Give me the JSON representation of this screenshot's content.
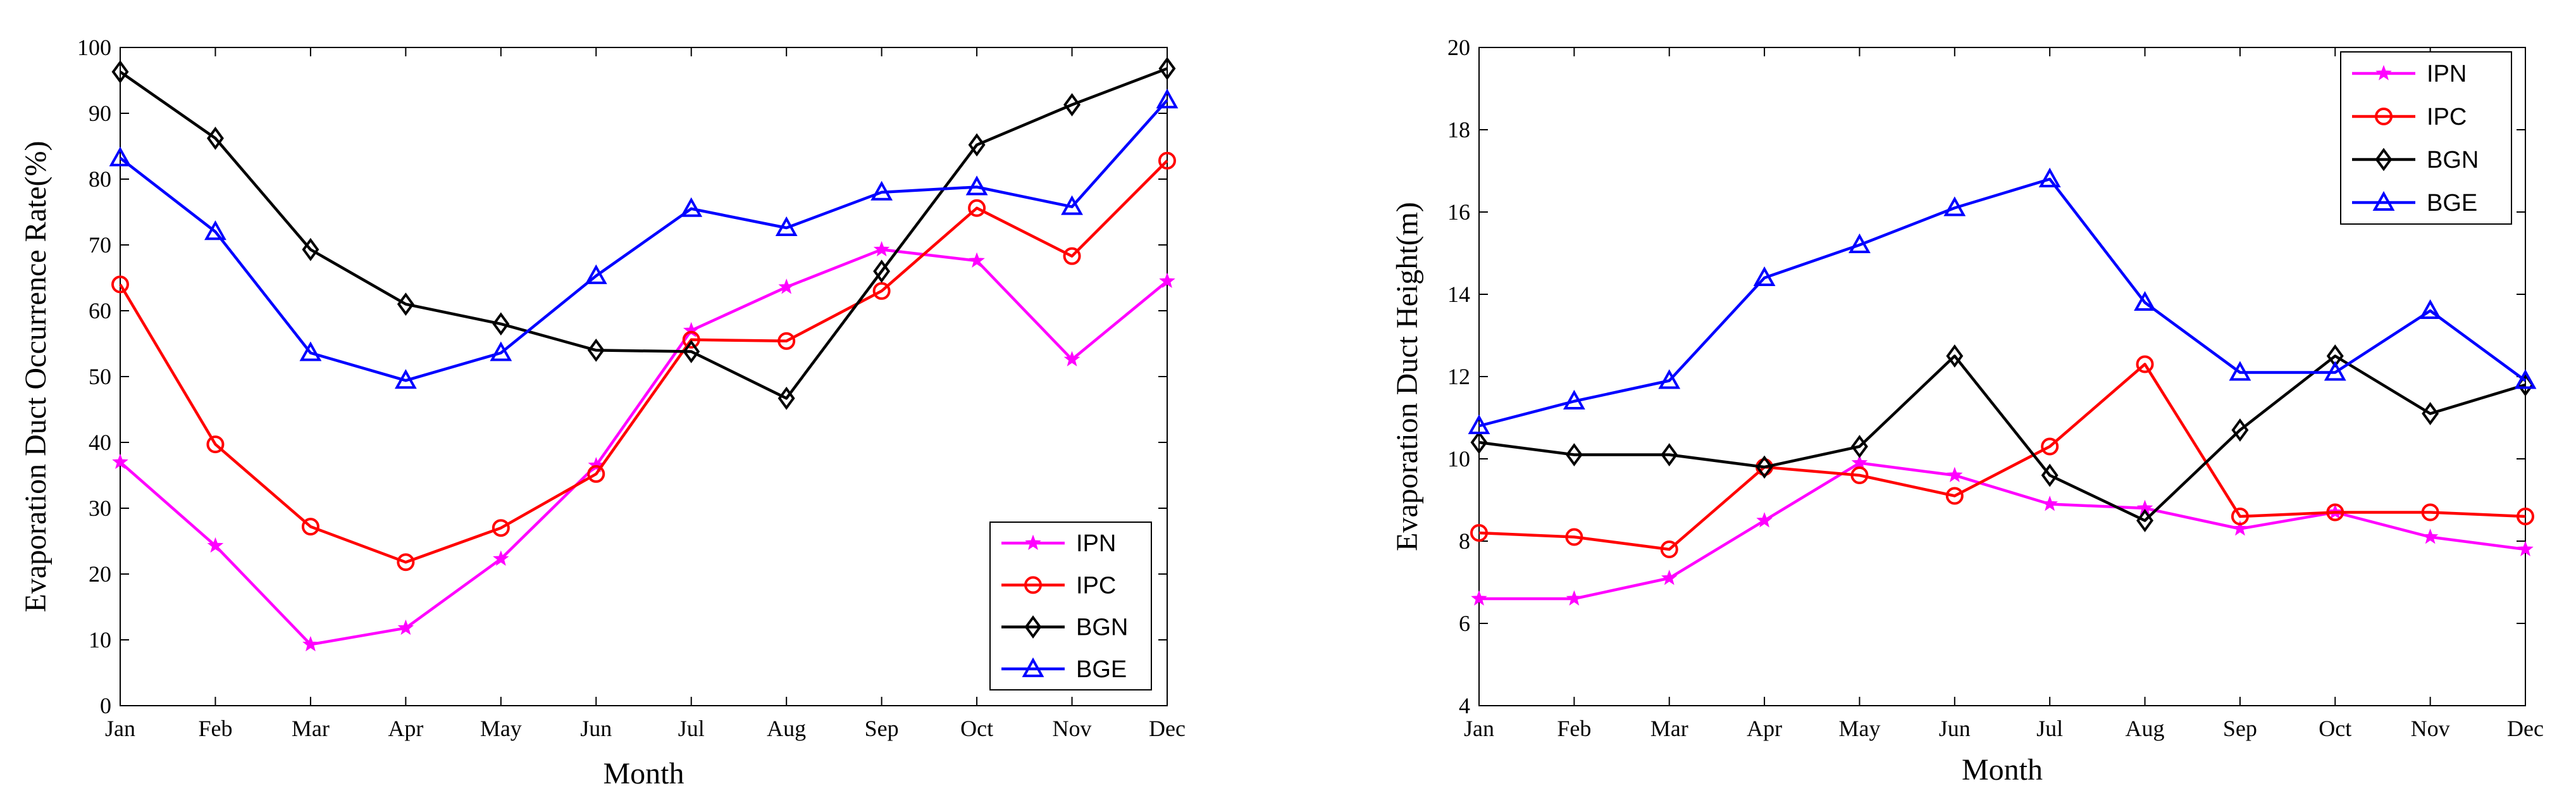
{
  "chart_data": [
    {
      "type": "line",
      "title": "",
      "xlabel": "Month",
      "ylabel": "Evaporation Duct Occurrence Rate(%)",
      "categories": [
        "Jan",
        "Feb",
        "Mar",
        "Apr",
        "May",
        "Jun",
        "Jul",
        "Aug",
        "Sep",
        "Oct",
        "Nov",
        "Dec"
      ],
      "ylim": [
        0,
        100
      ],
      "yticks": [
        0,
        10,
        20,
        30,
        40,
        50,
        60,
        70,
        80,
        90,
        100
      ],
      "legend_position": "bottom-right",
      "series": [
        {
          "name": "IPN",
          "color": "#ff00ff",
          "marker": "star",
          "values": [
            37,
            24.3,
            9.3,
            11.8,
            22.3,
            36.5,
            57,
            63.6,
            69.3,
            67.6,
            52.6,
            64.5
          ]
        },
        {
          "name": "IPC",
          "color": "#ff0000",
          "marker": "circle",
          "values": [
            64,
            39.7,
            27.2,
            21.8,
            27,
            35.2,
            55.6,
            55.4,
            63,
            75.6,
            68.3,
            82.8
          ]
        },
        {
          "name": "BGN",
          "color": "#000000",
          "marker": "diamond",
          "values": [
            96.3,
            86.2,
            69.3,
            61,
            58,
            54,
            53.8,
            46.7,
            66,
            85.2,
            91.3,
            96.8
          ]
        },
        {
          "name": "BGE",
          "color": "#0000ff",
          "marker": "triangle",
          "values": [
            83.2,
            72,
            53.6,
            49.4,
            53.6,
            65.3,
            75.5,
            72.6,
            78,
            78.8,
            75.8,
            92
          ]
        }
      ]
    },
    {
      "type": "line",
      "title": "",
      "xlabel": "Month",
      "ylabel": "Evaporation Duct Height(m)",
      "categories": [
        "Jan",
        "Feb",
        "Mar",
        "Apr",
        "May",
        "Jun",
        "Jul",
        "Aug",
        "Sep",
        "Oct",
        "Nov",
        "Dec"
      ],
      "ylim": [
        4,
        20
      ],
      "yticks": [
        4,
        6,
        8,
        10,
        12,
        14,
        16,
        18,
        20
      ],
      "legend_position": "top-right",
      "series": [
        {
          "name": "IPN",
          "color": "#ff00ff",
          "marker": "star",
          "values": [
            6.6,
            6.6,
            7.1,
            8.5,
            9.9,
            9.6,
            8.9,
            8.8,
            8.3,
            8.7,
            8.1,
            7.8
          ]
        },
        {
          "name": "IPC",
          "color": "#ff0000",
          "marker": "circle",
          "values": [
            8.2,
            8.1,
            7.8,
            9.8,
            9.6,
            9.1,
            10.3,
            12.3,
            8.6,
            8.7,
            8.7,
            8.6
          ]
        },
        {
          "name": "BGN",
          "color": "#000000",
          "marker": "diamond",
          "values": [
            10.4,
            10.1,
            10.1,
            9.8,
            10.3,
            12.5,
            9.6,
            8.5,
            10.7,
            12.5,
            11.1,
            11.8
          ]
        },
        {
          "name": "BGE",
          "color": "#0000ff",
          "marker": "triangle",
          "values": [
            10.8,
            11.4,
            11.9,
            14.4,
            15.2,
            16.1,
            16.8,
            13.8,
            12.1,
            12.1,
            13.6,
            11.9
          ]
        }
      ]
    }
  ]
}
